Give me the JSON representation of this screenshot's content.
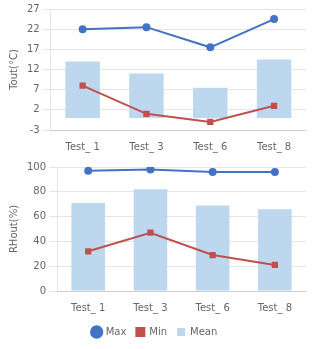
{
  "chart_data": [
    {
      "type": "bar",
      "categories": [
        "Test_ 1",
        "Test_ 3",
        "Test_ 6",
        "Test_ 8"
      ],
      "ylabel": "Tout(°C)",
      "series": [
        {
          "name": "Mean",
          "type": "bar",
          "color": "#bdd7ee",
          "values": [
            14,
            11,
            7.5,
            14.5
          ]
        },
        {
          "name": "Max",
          "type": "line",
          "color": "#4472c4",
          "marker": "circle",
          "values": [
            22,
            22.5,
            17.5,
            24.5
          ]
        },
        {
          "name": "Min",
          "type": "line",
          "color": "#c0504d",
          "marker": "square",
          "values": [
            8,
            1,
            -1,
            3
          ]
        }
      ],
      "ylim": [
        -3,
        27
      ],
      "yticks": [
        -3,
        2,
        7,
        12,
        17,
        22,
        27
      ],
      "grid": true
    },
    {
      "type": "bar",
      "categories": [
        "Test_ 1",
        "Test_ 3",
        "Test_ 6",
        "Test_ 8"
      ],
      "ylabel": "RHout(%)",
      "series": [
        {
          "name": "Mean",
          "type": "bar",
          "color": "#bdd7ee",
          "values": [
            71,
            82,
            69,
            66
          ]
        },
        {
          "name": "Max",
          "type": "line",
          "color": "#4472c4",
          "marker": "circle",
          "values": [
            97,
            98,
            96,
            96
          ]
        },
        {
          "name": "Min",
          "type": "line",
          "color": "#c0504d",
          "marker": "square",
          "values": [
            32,
            47,
            29,
            21
          ]
        }
      ],
      "ylim": [
        0,
        100
      ],
      "yticks": [
        0,
        20,
        40,
        60,
        80,
        100
      ],
      "grid": true,
      "legend": "bottom"
    }
  ]
}
